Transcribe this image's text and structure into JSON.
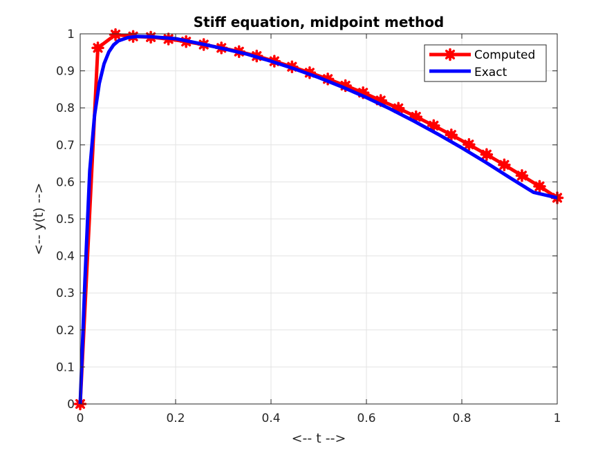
{
  "chart_data": {
    "type": "line",
    "title": "Stiff equation, midpoint method",
    "xlabel": "<-- t -->",
    "ylabel": "<-- y(t) -->",
    "xlim": [
      0,
      1
    ],
    "ylim": [
      0,
      1
    ],
    "grid": true,
    "legend_position": "top-right",
    "x_ticks": [
      0,
      0.2,
      0.4,
      0.6,
      0.8,
      1
    ],
    "x_tick_labels": [
      "0",
      "0.2",
      "0.4",
      "0.6",
      "0.8",
      "1"
    ],
    "y_ticks": [
      0,
      0.1,
      0.2,
      0.3,
      0.4,
      0.5,
      0.6,
      0.7,
      0.8,
      0.9,
      1
    ],
    "y_tick_labels": [
      "0",
      "0.1",
      "0.2",
      "0.3",
      "0.4",
      "0.5",
      "0.6",
      "0.7",
      "0.8",
      "0.9",
      "1"
    ],
    "series": [
      {
        "name": "Computed",
        "color": "#ff0000",
        "marker": "asterisk",
        "x": [
          0,
          0.037,
          0.074,
          0.111,
          0.148,
          0.185,
          0.222,
          0.259,
          0.296,
          0.333,
          0.37,
          0.407,
          0.444,
          0.481,
          0.519,
          0.556,
          0.593,
          0.63,
          0.667,
          0.704,
          0.741,
          0.778,
          0.815,
          0.852,
          0.889,
          0.926,
          0.963,
          1.0
        ],
        "y": [
          0,
          0.962,
          0.998,
          0.993,
          0.991,
          0.986,
          0.979,
          0.971,
          0.962,
          0.952,
          0.94,
          0.926,
          0.911,
          0.895,
          0.878,
          0.86,
          0.841,
          0.82,
          0.799,
          0.776,
          0.752,
          0.727,
          0.701,
          0.674,
          0.646,
          0.617,
          0.588,
          0.557
        ]
      },
      {
        "name": "Exact",
        "color": "#0000ff",
        "x": [
          0,
          0.01,
          0.02,
          0.03,
          0.04,
          0.05,
          0.06,
          0.07,
          0.08,
          0.1,
          0.12,
          0.15,
          0.2,
          0.25,
          0.3,
          0.35,
          0.4,
          0.45,
          0.5,
          0.55,
          0.6,
          0.65,
          0.7,
          0.75,
          0.8,
          0.85,
          0.9,
          0.95,
          1.0
        ],
        "y": [
          0,
          0.337,
          0.63,
          0.779,
          0.866,
          0.919,
          0.951,
          0.97,
          0.981,
          0.99,
          0.993,
          0.992,
          0.987,
          0.974,
          0.96,
          0.945,
          0.926,
          0.905,
          0.882,
          0.856,
          0.828,
          0.797,
          0.764,
          0.729,
          0.692,
          0.653,
          0.612,
          0.572,
          0.557
        ]
      }
    ]
  }
}
